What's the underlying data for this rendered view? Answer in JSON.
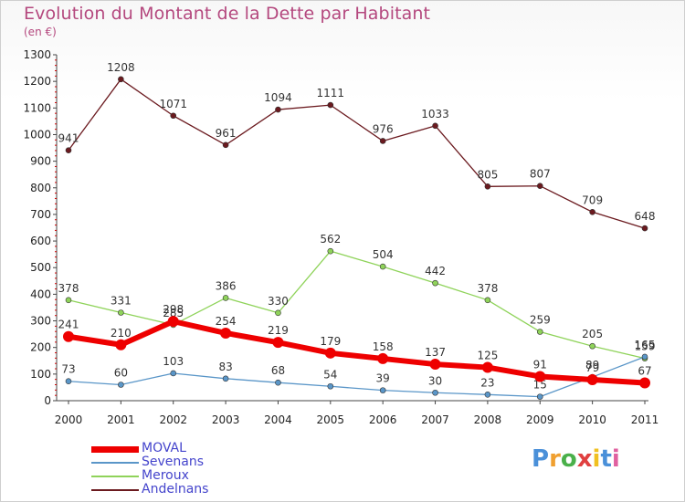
{
  "title": "Evolution du Montant de la Dette par Habitant",
  "subtitle": "(en €)",
  "logo": [
    "P",
    "r",
    "o",
    "x",
    "i",
    "t",
    "i"
  ],
  "logo_colors": [
    "#4a90d9",
    "#f0a030",
    "#4ab04a",
    "#e04040",
    "#f0c020",
    "#4a90d9",
    "#e060a0"
  ],
  "chart_data": {
    "type": "line",
    "x": [
      "2000",
      "2001",
      "2002",
      "2003",
      "2004",
      "2005",
      "2006",
      "2007",
      "2008",
      "2009",
      "2010",
      "2011"
    ],
    "ylim": [
      0,
      1300
    ],
    "yticks": [
      0,
      100,
      200,
      300,
      400,
      500,
      600,
      700,
      800,
      900,
      1000,
      1100,
      1200,
      1300
    ],
    "grid": false,
    "legend": "bottom-left",
    "series": [
      {
        "name": "Andelnans",
        "color": "#6b1a1f",
        "width": 1.3,
        "values": [
          941,
          1208,
          1071,
          961,
          1094,
          1111,
          976,
          1033,
          805,
          807,
          709,
          648
        ]
      },
      {
        "name": "Meroux",
        "color": "#8fd35a",
        "width": 1.3,
        "values": [
          378,
          331,
          285,
          386,
          330,
          562,
          504,
          442,
          378,
          259,
          205,
          159
        ]
      },
      {
        "name": "Sevenans",
        "color": "#5a96c8",
        "width": 1.3,
        "values": [
          73,
          60,
          103,
          83,
          68,
          54,
          39,
          30,
          23,
          15,
          89,
          165
        ]
      },
      {
        "name": "MOVAL",
        "color": "#ee0000",
        "width": 6,
        "values": [
          241,
          210,
          298,
          254,
          219,
          179,
          158,
          137,
          125,
          91,
          79,
          67
        ]
      }
    ],
    "legend_order": [
      "MOVAL",
      "Sevenans",
      "Meroux",
      "Andelnans"
    ]
  }
}
